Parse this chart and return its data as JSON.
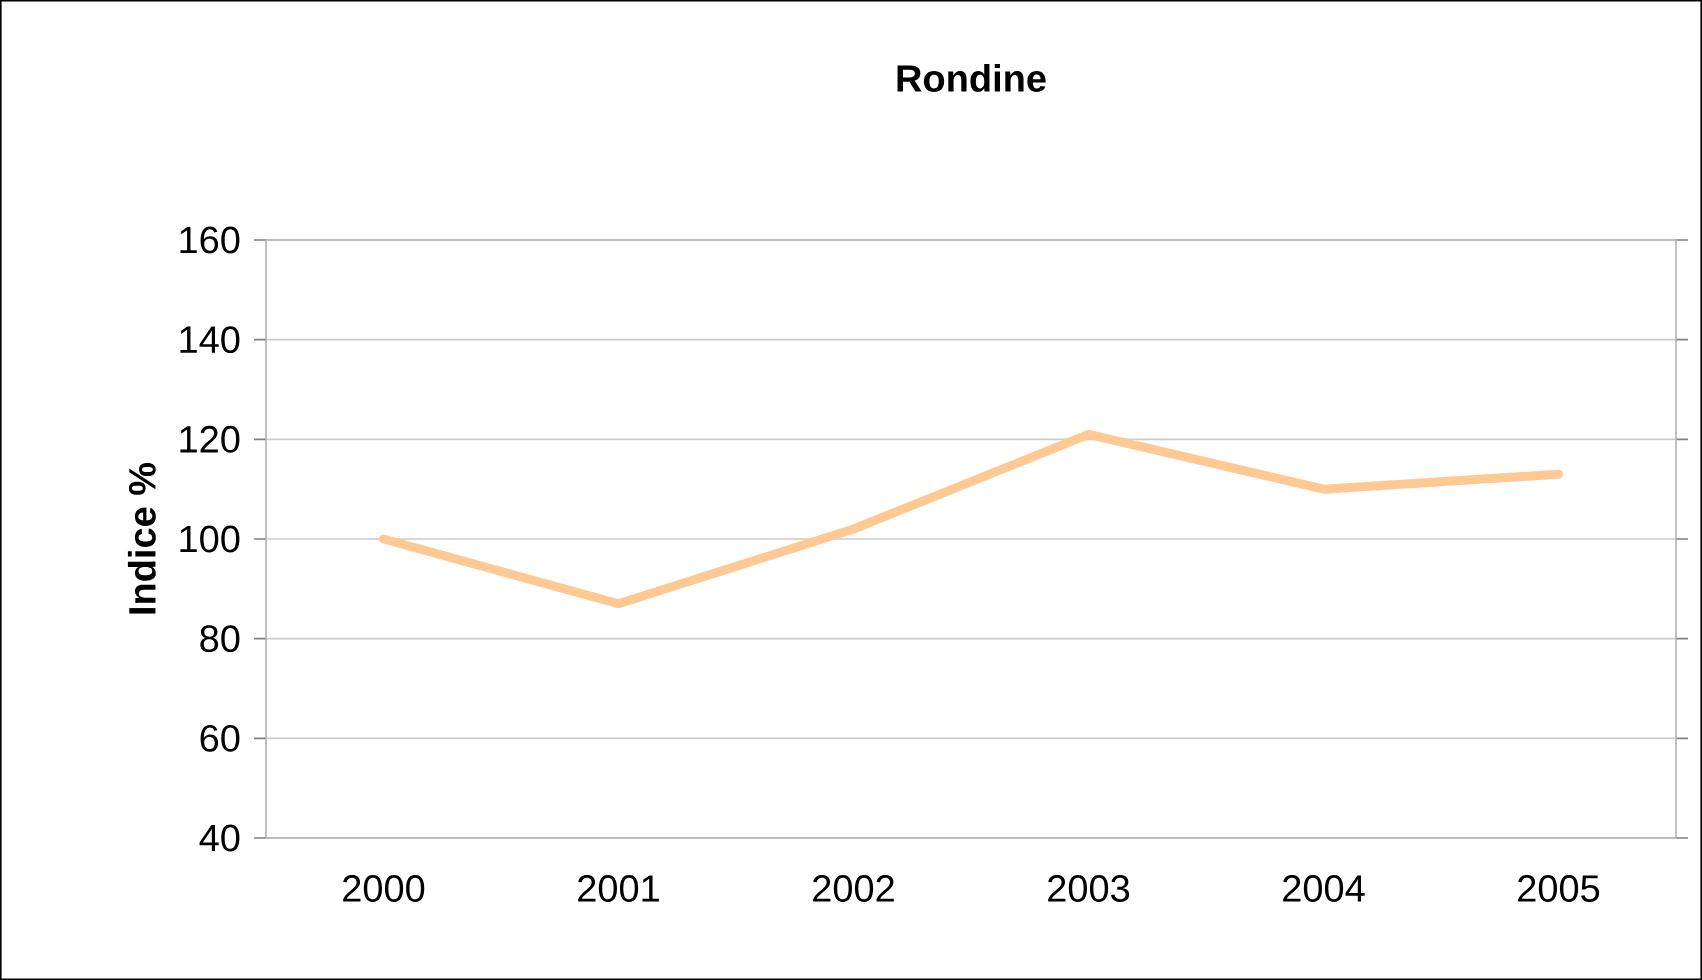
{
  "chart_data": {
    "type": "line",
    "title": "Rondine",
    "ylabel": "Indice %",
    "categories": [
      "2000",
      "2001",
      "2002",
      "2003",
      "2004",
      "2005"
    ],
    "series": [
      {
        "color": "#ffc993",
        "values": [
          100,
          87,
          102,
          121,
          110,
          113
        ]
      }
    ],
    "ylim": [
      40,
      160
    ],
    "yticks": [
      40,
      60,
      80,
      100,
      120,
      140,
      160
    ],
    "grid": "y",
    "marker": "none",
    "line_style": "solid"
  }
}
